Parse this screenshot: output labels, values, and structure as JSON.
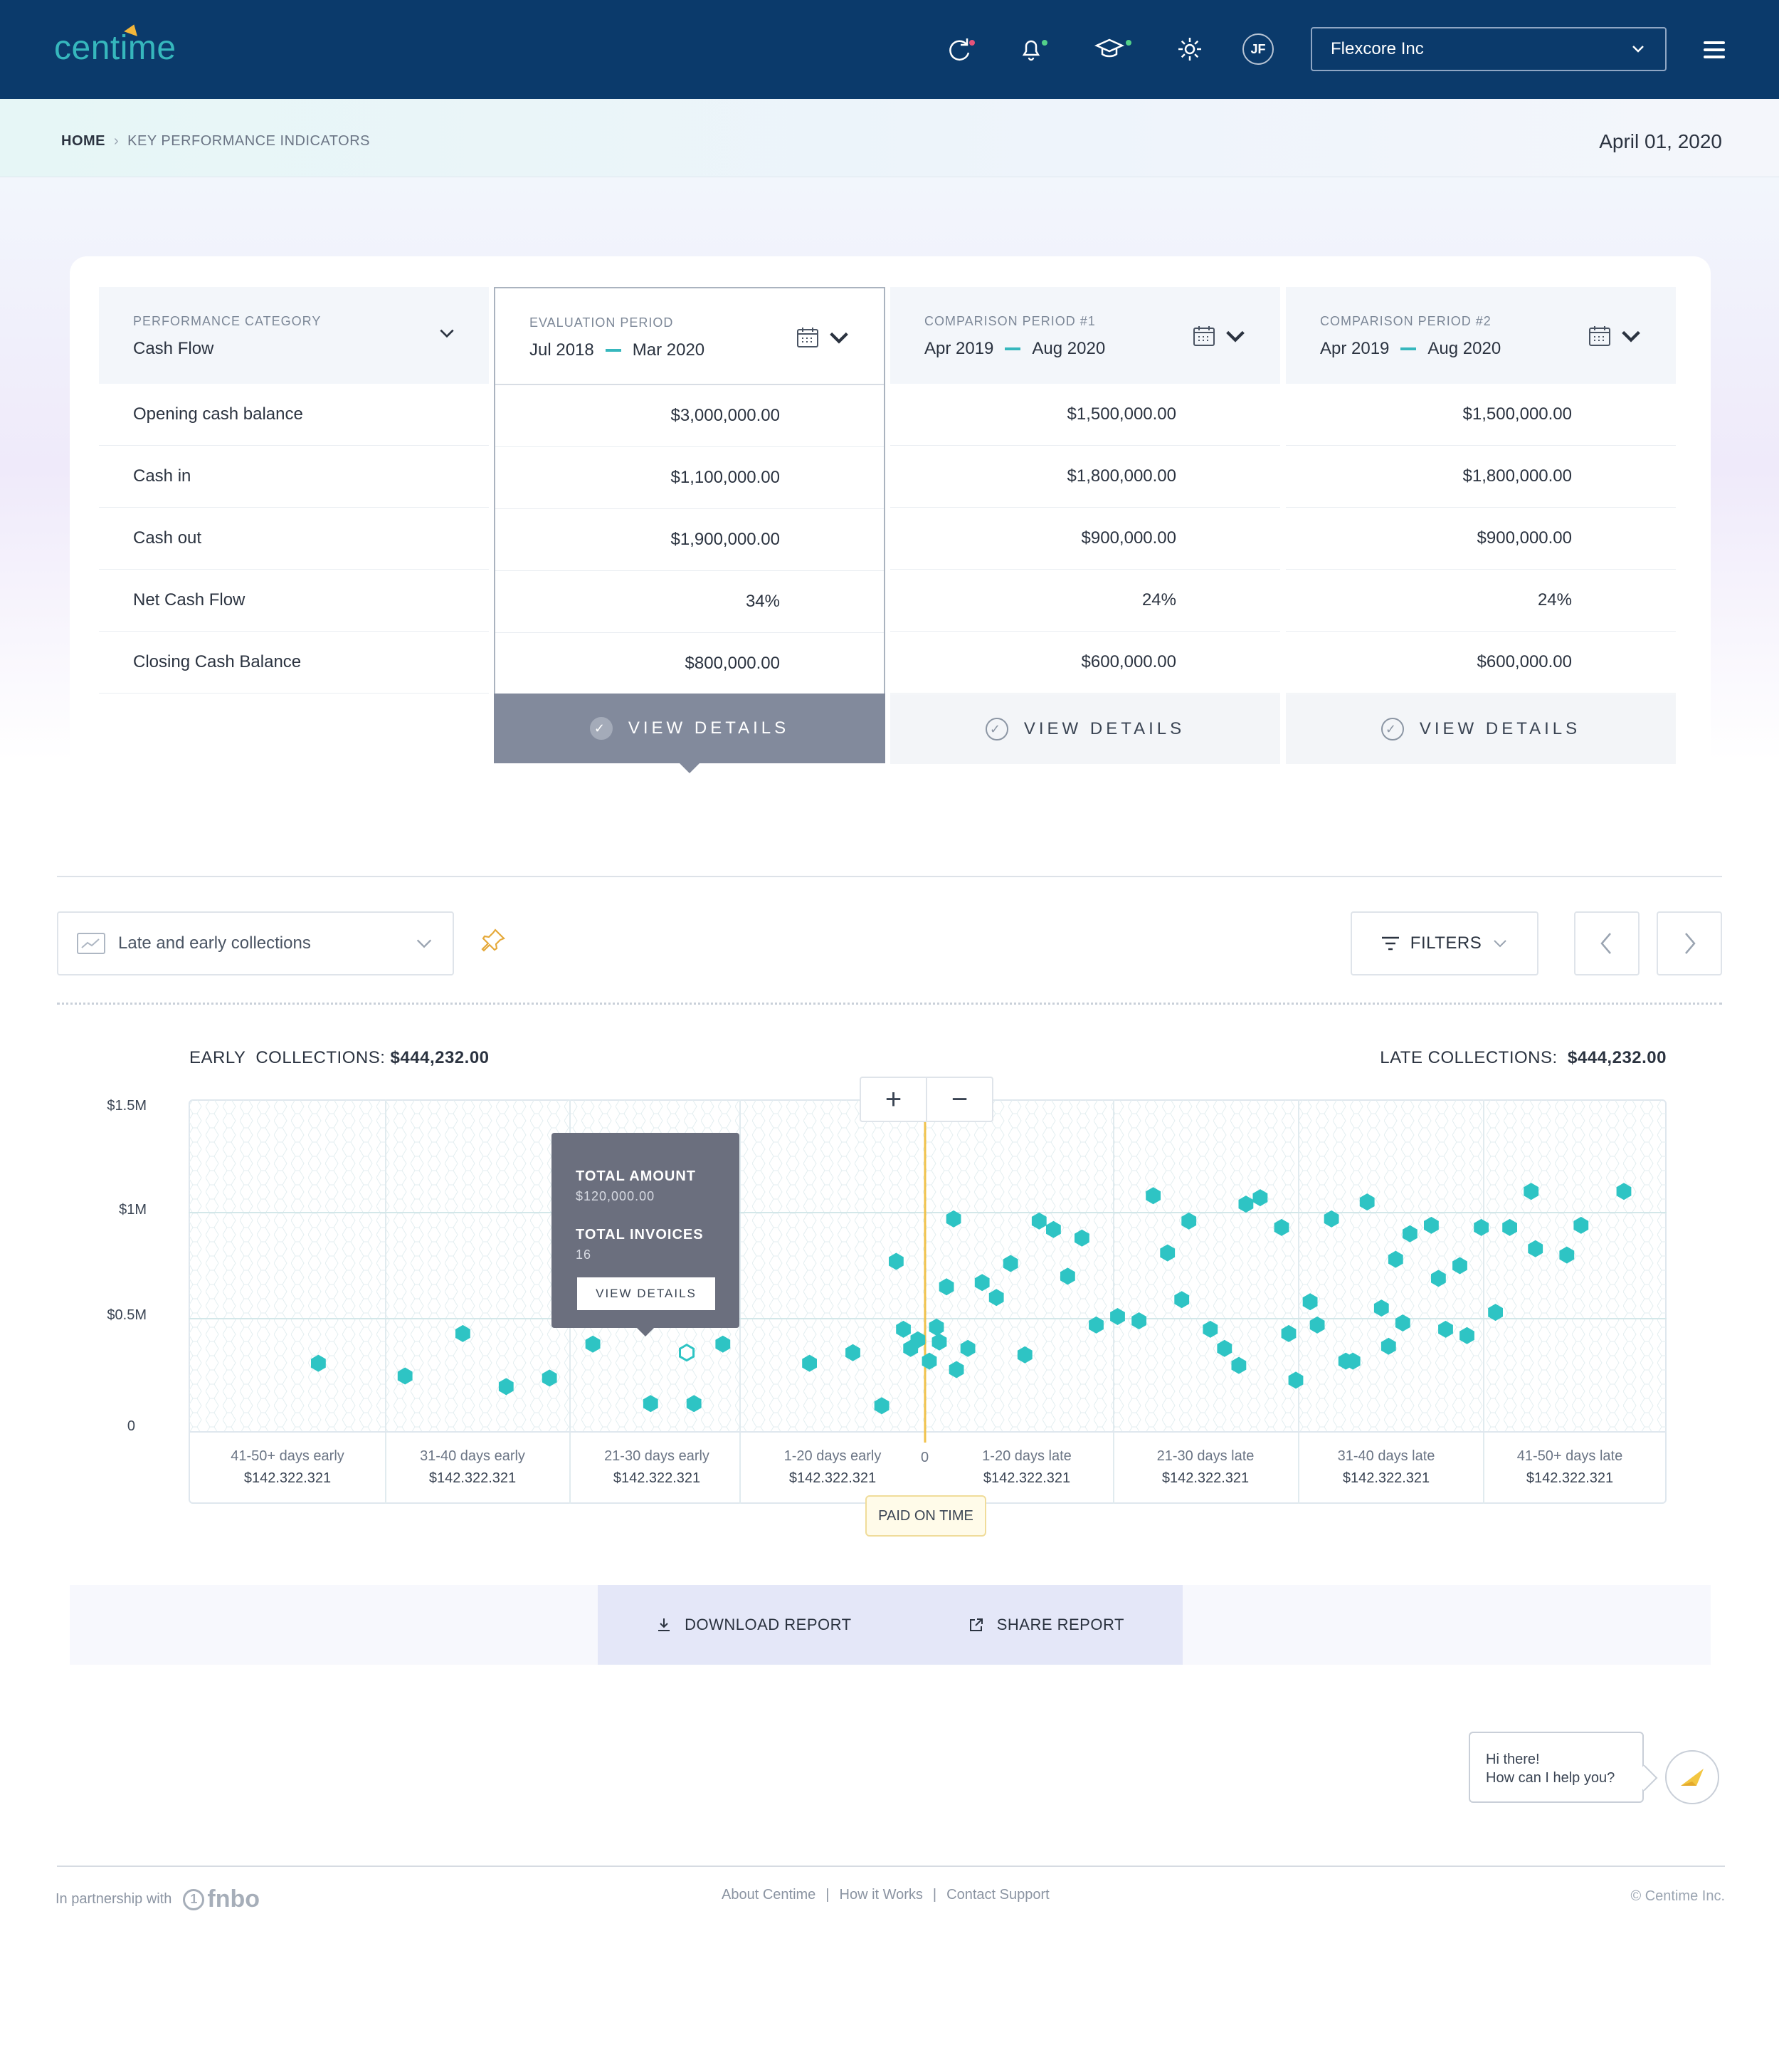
{
  "header": {
    "logo": "centime",
    "user_initials": "JF",
    "company": "Flexcore Inc",
    "icons": [
      "sync-icon",
      "bell-icon",
      "graduation-cap-icon",
      "gear-icon",
      "menu-icon"
    ],
    "colors": {
      "navy": "#0b3a6b",
      "teal": "#36b7bd",
      "alert_pink": "#e5537a",
      "alert_green": "#53d18a"
    }
  },
  "breadcrumb": {
    "home": "HOME",
    "current": "KEY PERFORMANCE INDICATORS"
  },
  "page_date": "April 01, 2020",
  "kpi": {
    "category": {
      "label": "PERFORMANCE CATEGORY",
      "value": "Cash Flow"
    },
    "evaluation": {
      "label": "EVALUATION PERIOD",
      "from": "Jul 2018",
      "to": "Mar 2020"
    },
    "comparison1": {
      "label": "COMPARISON PERIOD #1",
      "from": "Apr 2019",
      "to": "Aug 2020"
    },
    "comparison2": {
      "label": "COMPARISON PERIOD #2",
      "from": "Apr 2019",
      "to": "Aug 2020"
    },
    "rows": [
      {
        "label": "Opening cash balance",
        "eval": "$3,000,000.00",
        "c1": "$1,500,000.00",
        "c2": "$1,500,000.00"
      },
      {
        "label": "Cash in",
        "eval": "$1,100,000.00",
        "c1": "$1,800,000.00",
        "c2": "$1,800,000.00"
      },
      {
        "label": "Cash out",
        "eval": "$1,900,000.00",
        "c1": "$900,000.00",
        "c2": "$900,000.00"
      },
      {
        "label": "Net Cash Flow",
        "eval": "34%",
        "c1": "24%",
        "c2": "24%"
      },
      {
        "label": "Closing Cash Balance",
        "eval": "$800,000.00",
        "c1": "$600,000.00",
        "c2": "$600,000.00"
      }
    ],
    "view_details": "VIEW DETAILS"
  },
  "collections": {
    "view": "Late and early collections",
    "filters": "FILTERS",
    "early_label": "EARLY  COLLECTIONS:",
    "early_value": "$444,232.00",
    "late_label": "LATE COLLECTIONS:",
    "late_value": "$444,232.00",
    "paid_on_time": "PAID ON TIME",
    "zero_label": "0",
    "zoom_in": "+",
    "zoom_out": "−",
    "tooltip": {
      "amount_label": "TOTAL AMOUNT",
      "amount_value": "$120,000.00",
      "invoices_label": "TOTAL INVOICES",
      "invoices_value": "16",
      "button": "VIEW DETAILS"
    }
  },
  "chart_data": {
    "type": "scatter",
    "title": "",
    "xlabel": "",
    "ylabel": "",
    "y_ticks": [
      "$1.5M",
      "$1M",
      "$0.5M",
      "0"
    ],
    "ylim": [
      0,
      1.5
    ],
    "y_unit": "$M",
    "categories": [
      {
        "label": "41-50+ days early",
        "value": "$142.322.321"
      },
      {
        "label": "31-40 days early",
        "value": "$142.322.321"
      },
      {
        "label": "21-30 days early",
        "value": "$142.322.321"
      },
      {
        "label": "1-20 days early",
        "value": "$142.322.321"
      },
      {
        "label": "1-20 days late",
        "value": "$142.322.321"
      },
      {
        "label": "21-30 days late",
        "value": "$142.322.321"
      },
      {
        "label": "31-40 days late",
        "value": "$142.322.321"
      },
      {
        "label": "41-50+ days late",
        "value": "$142.322.321"
      }
    ],
    "x_axis_days": {
      "min": -50,
      "max": 50,
      "paid_on_time": 0
    },
    "grid": true,
    "marker_color": "#2ec4c4",
    "points": [
      [
        -42,
        0.29
      ],
      [
        -36,
        0.23
      ],
      [
        -32,
        0.43
      ],
      [
        -29,
        0.18
      ],
      [
        -26,
        0.22
      ],
      [
        -23,
        0.38
      ],
      [
        -19,
        0.1
      ],
      [
        -16,
        0.1
      ],
      [
        -14,
        0.38
      ],
      [
        -8,
        0.29
      ],
      [
        -5,
        0.34
      ],
      [
        -3,
        0.09
      ],
      [
        2,
        0.97
      ],
      [
        -2,
        0.77
      ],
      [
        -1.5,
        0.45
      ],
      [
        -1,
        0.36
      ],
      [
        -0.5,
        0.4
      ],
      [
        0.3,
        0.3
      ],
      [
        0.8,
        0.46
      ],
      [
        1,
        0.39
      ],
      [
        1.5,
        0.65
      ],
      [
        2.2,
        0.26
      ],
      [
        3,
        0.36
      ],
      [
        4,
        0.67
      ],
      [
        5,
        0.6
      ],
      [
        6,
        0.76
      ],
      [
        7,
        0.33
      ],
      [
        8,
        0.96
      ],
      [
        9,
        0.92
      ],
      [
        10,
        0.7
      ],
      [
        11,
        0.88
      ],
      [
        12,
        0.47
      ],
      [
        13.5,
        0.51
      ],
      [
        15,
        0.49
      ],
      [
        16,
        1.08
      ],
      [
        17,
        0.81
      ],
      [
        18,
        0.59
      ],
      [
        18.5,
        0.96
      ],
      [
        20,
        0.45
      ],
      [
        21,
        0.36
      ],
      [
        22,
        0.28
      ],
      [
        22.5,
        1.04
      ],
      [
        23.5,
        1.07
      ],
      [
        25,
        0.93
      ],
      [
        25.5,
        0.43
      ],
      [
        26,
        0.21
      ],
      [
        27,
        0.58
      ],
      [
        27.5,
        0.47
      ],
      [
        28.5,
        0.97
      ],
      [
        29.5,
        0.3
      ],
      [
        30,
        0.3
      ],
      [
        31,
        1.05
      ],
      [
        32,
        0.55
      ],
      [
        32.5,
        0.37
      ],
      [
        33,
        0.78
      ],
      [
        33.5,
        0.48
      ],
      [
        34,
        0.9
      ],
      [
        35.5,
        0.94
      ],
      [
        36,
        0.69
      ],
      [
        36.5,
        0.45
      ],
      [
        37.5,
        0.75
      ],
      [
        38,
        0.42
      ],
      [
        39,
        0.93
      ],
      [
        40,
        0.53
      ],
      [
        41,
        0.93
      ],
      [
        42.5,
        1.1
      ],
      [
        42.8,
        0.83
      ],
      [
        45,
        0.8
      ],
      [
        46,
        0.94
      ],
      [
        49,
        1.1
      ]
    ],
    "highlighted_point": [
      -16.5,
      0.34
    ]
  },
  "report": {
    "download": "DOWNLOAD REPORT",
    "share": "SHARE REPORT"
  },
  "chat": {
    "line1": "Hi there!",
    "line2": "How can I help you?"
  },
  "footer": {
    "partner_text": "In partnership with",
    "partner_brand": "fnbo",
    "links": [
      "About Centime",
      "How it Works",
      "Contact Support"
    ],
    "copyright": "© Centime Inc."
  }
}
